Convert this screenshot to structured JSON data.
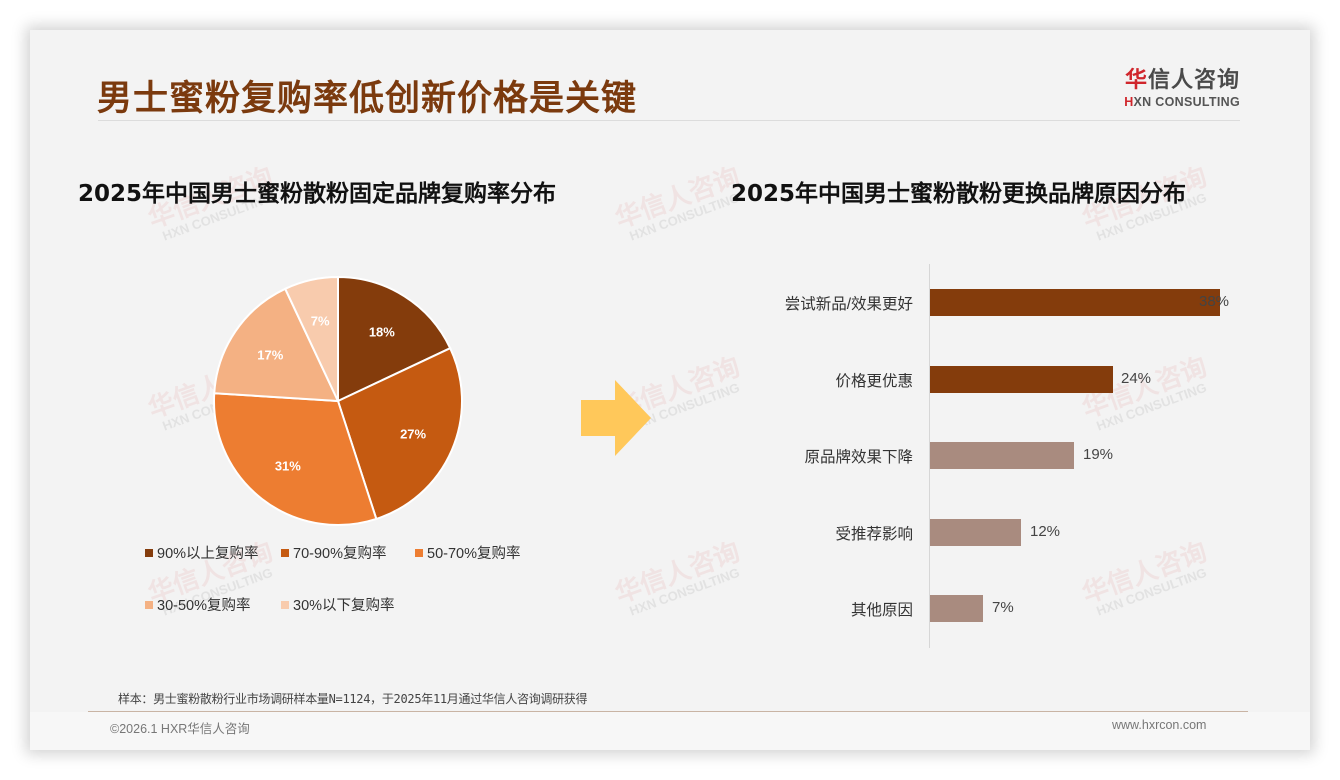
{
  "page": {
    "title": "男士蜜粉复购率低创新价格是关键",
    "logo": {
      "cn_accent": "华",
      "cn_rest": "信人咨询",
      "en_accent": "H",
      "en_rest": "XN CONSULTING"
    },
    "watermark": {
      "cn": "华信人咨询",
      "en": "HXN CONSULTING"
    },
    "footnote": "样本：男士蜜粉散粉行业市场调研样本量N=1124，于2025年11月通过华信人咨询调研获得",
    "copyright": "©2026.1 HXR华信人咨询",
    "website": "www.hxrcon.com",
    "colors": {
      "title": "#7b3a0e",
      "arrow": "#ffc85a",
      "bar_dark": "#843c0c",
      "bar_light": "#a98b7f"
    }
  },
  "chart_data": [
    {
      "type": "pie",
      "title": "2025年中国男士蜜粉散粉固定品牌复购率分布",
      "categories": [
        "90%以上复购率",
        "70-90%复购率",
        "50-70%复购率",
        "30-50%复购率",
        "30%以下复购率"
      ],
      "values": [
        18,
        27,
        31,
        17,
        7
      ],
      "labels": [
        "18%",
        "27%",
        "31%",
        "17%",
        "7%"
      ],
      "colors": [
        "#843c0c",
        "#c55a11",
        "#ed7d31",
        "#f4b183",
        "#f8cbad"
      ],
      "legend_position": "bottom"
    },
    {
      "type": "bar",
      "orientation": "horizontal",
      "title": "2025年中国男士蜜粉散粉更换品牌原因分布",
      "categories": [
        "尝试新品/效果更好",
        "价格更优惠",
        "原品牌效果下降",
        "受推荐影响",
        "其他原因"
      ],
      "values": [
        38,
        24,
        19,
        12,
        7
      ],
      "labels": [
        "38%",
        "24%",
        "19%",
        "12%",
        "7%"
      ],
      "colors": [
        "#843c0c",
        "#843c0c",
        "#a98b7f",
        "#a98b7f",
        "#a98b7f"
      ],
      "xlim": [
        0,
        40
      ],
      "grid": false
    }
  ]
}
